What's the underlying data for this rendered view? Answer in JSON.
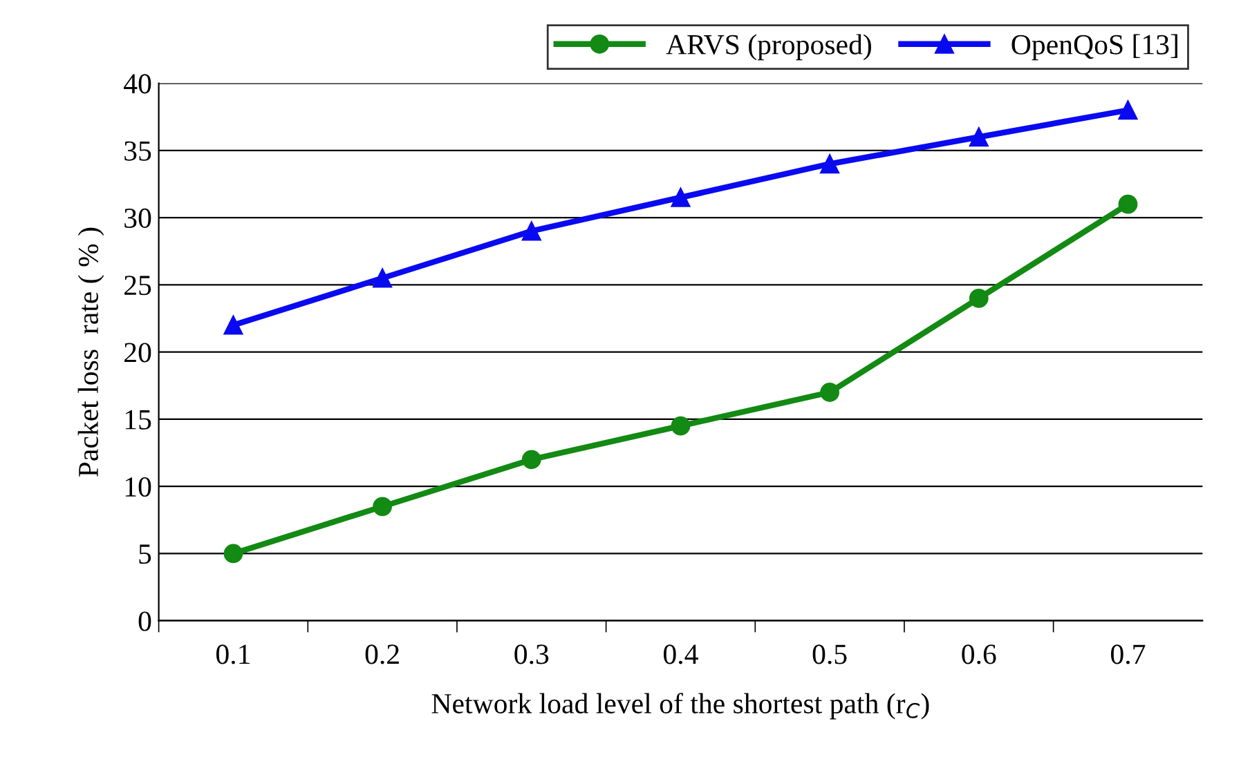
{
  "chart_data": {
    "type": "line",
    "xlabel": "Network load level of the shortest path (r$_{C}$)",
    "ylabel": "Packet loss  rate ( % )",
    "categories": [
      "0.1",
      "0.2",
      "0.3",
      "0.4",
      "0.5",
      "0.6",
      "0.7"
    ],
    "series": [
      {
        "name": "ARVS (proposed)",
        "color": "#138a13",
        "marker": "circle",
        "values": [
          5,
          8.5,
          12,
          14.5,
          17,
          24,
          31
        ]
      },
      {
        "name": "OpenQoS [13]",
        "color": "#0a0af0",
        "marker": "triangle",
        "values": [
          22,
          25.5,
          29,
          31.5,
          34,
          36,
          38
        ]
      }
    ],
    "ylim": [
      0,
      40
    ],
    "yticks": [
      0,
      5,
      10,
      15,
      20,
      25,
      30,
      35,
      40
    ],
    "grid": "y",
    "legend": "top right",
    "line_style": "solid"
  }
}
